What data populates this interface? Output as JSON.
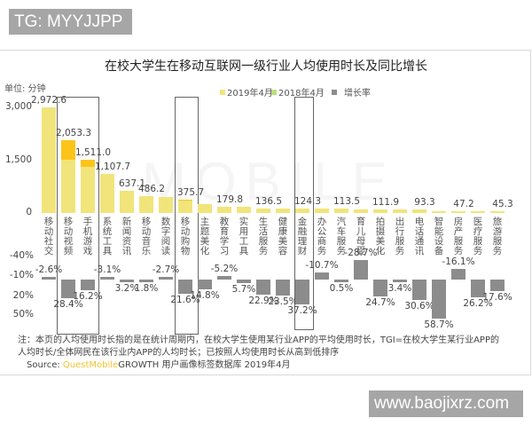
{
  "watermarks": {
    "top": "TG: MYYJJPP",
    "bottom": "www.baojixrz.com"
  },
  "chart_title": "在校大学生在移动互联网一级行业人均使用时长及同比增长",
  "unit_label": "单位: 分钟",
  "legend": [
    {
      "label": "2019年4月",
      "color": "#f1e47a"
    },
    {
      "label": "2018年4月",
      "color": "#fcc419"
    },
    {
      "label": "增长率",
      "color": "#8c8c8c"
    }
  ],
  "y_ticks_top": [
    "3,000",
    "1,500",
    "0"
  ],
  "y_ticks_bottom": [
    "-40%",
    "-10%",
    "20%",
    "50%"
  ],
  "notes": {
    "line1": "注：本页的人均使用时长指的是在统计周期内，在校大学生使用某行业APP的平均使用时长，TGI=在校大学生某行业APP的",
    "line2": "人均时长/全体网民在该行业内APP的人均时长；已按照人均使用时长从高到低排序",
    "source_prefix": "Source: ",
    "source_brand": "QuestMobile",
    "source_rest": "GROWTH 用户画像标签数据库  2019年4月"
  },
  "chart_data": {
    "type": "bar",
    "title": "在校大学生在移动互联网一级行业人均使用时长及同比增长",
    "xlabel": "",
    "ylabel": "单位: 分钟",
    "ylim": [
      0,
      3000
    ],
    "growth_ylim": [
      -40,
      50
    ],
    "categories": [
      "移动社交",
      "移动视频",
      "手机游戏",
      "系统工具",
      "新闻资讯",
      "移动音乐",
      "数字阅读",
      "移动购物",
      "主题美化",
      "教育学习",
      "实用工具",
      "生活服务",
      "健康美容",
      "金融理财",
      "办公商务",
      "汽车服务",
      "育儿母婴",
      "拍摄美化",
      "出行服务",
      "电话通讯",
      "智能设备",
      "房产服务",
      "医疗服务",
      "旅游服务"
    ],
    "series": [
      {
        "name": "2019年4月",
        "values": [
          2972.6,
          2053.3,
          1511.0,
          1107.7,
          637.1,
          486.2,
          450,
          375.7,
          260,
          179.8,
          170,
          136.5,
          130,
          124.3,
          118,
          113.5,
          112,
          111.9,
          100,
          93.3,
          50,
          47.2,
          46,
          45.3
        ]
      },
      {
        "name": "增长率",
        "values": [
          -2.6,
          28.4,
          16.2,
          -3.1,
          3.2,
          1.8,
          -2.7,
          21.6,
          14.8,
          -5.2,
          5.7,
          22.9,
          23.5,
          37.2,
          -10.7,
          0.5,
          -28.7,
          24.7,
          3.4,
          30.6,
          58.7,
          -16.1,
          26.2,
          17.6
        ]
      }
    ],
    "value_labels": [
      "2,972.6",
      "2,053.3",
      "1,511.0",
      "1,107.7",
      "637.1",
      "486.2",
      "",
      "375.7",
      "",
      "179.8",
      "",
      "136.5",
      "",
      "124.3",
      "",
      "113.5",
      "",
      "111.9",
      "",
      "93.3",
      "",
      "47.2",
      "",
      "45.3"
    ],
    "growth_labels": [
      "-2.6%",
      "28.4%",
      "16.2%",
      "-3.1%",
      "3.2%",
      "1.8%",
      "-2.7%",
      "21.6%",
      "14.8%",
      "-5.2%",
      "5.7%",
      "22.9%",
      "23.5%",
      "37.2%",
      "-10.7%",
      "0.5%",
      "-28.7%",
      "24.7%",
      "3.4%",
      "30.6%",
      "58.7%",
      "-16.1%",
      "26.2%",
      "17.6%"
    ],
    "highlighted": [
      "移动视频",
      "手机游戏",
      "移动购物",
      "金融理财"
    ],
    "grid": false,
    "legend_position": "top"
  }
}
